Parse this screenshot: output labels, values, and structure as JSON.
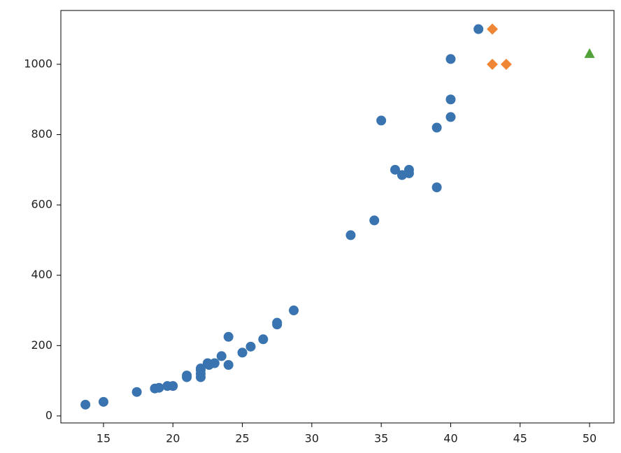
{
  "chart_data": {
    "type": "scatter",
    "xlim": [
      11.93,
      51.76
    ],
    "ylim": [
      -20,
      1153
    ],
    "xticks": [
      15,
      20,
      25,
      30,
      35,
      40,
      45,
      50
    ],
    "yticks": [
      0,
      200,
      400,
      600,
      800,
      1000
    ],
    "grid": false,
    "series": [
      {
        "color": "#3a74b0",
        "marker": "circle",
        "x": [
          13.7,
          15,
          17.4,
          18.7,
          19,
          19.6,
          20,
          21,
          21,
          22,
          22,
          22,
          22,
          22.5,
          22.6,
          23,
          23.5,
          24,
          24,
          25,
          25.6,
          26.5,
          27.5,
          27.5,
          28.7,
          32.8,
          34.5,
          35,
          36,
          36.5,
          37,
          37,
          39,
          39,
          40,
          40,
          40,
          42
        ],
        "y": [
          32,
          40,
          68,
          78,
          80,
          85,
          85,
          110,
          115,
          110,
          120,
          130,
          135,
          150,
          145,
          150,
          170,
          145,
          225,
          180,
          197,
          218,
          260,
          265,
          300,
          514,
          556,
          840,
          700,
          685,
          690,
          700,
          820,
          650,
          850,
          900,
          1015,
          1100
        ]
      },
      {
        "color": "#ef8636",
        "marker": "diamond",
        "x": [
          43,
          43,
          44
        ],
        "y": [
          1100,
          1000,
          1000
        ]
      },
      {
        "color": "#51a23a",
        "marker": "triangle",
        "x": [
          50
        ],
        "y": [
          1030
        ]
      }
    ]
  }
}
